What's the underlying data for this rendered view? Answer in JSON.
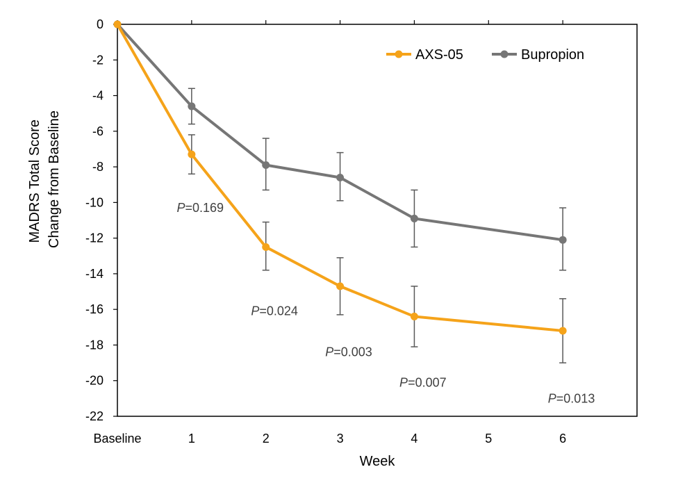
{
  "chart_data": {
    "type": "line",
    "xlabel": "Week",
    "ylabel_line1": "MADRS Total Score",
    "ylabel_line2": "Change from Baseline",
    "ylim": [
      -22,
      0
    ],
    "yticks": [
      0,
      -2,
      -4,
      -6,
      -8,
      -10,
      -12,
      -14,
      -16,
      -18,
      -20,
      -22
    ],
    "ytick_labels": [
      "0",
      "-2",
      "-4",
      "-6",
      "-8",
      "-10",
      "-12",
      "-14",
      "-16",
      "-18",
      "-20",
      "-22"
    ],
    "xlim": [
      0,
      7
    ],
    "xticks": [
      0,
      1,
      2,
      3,
      4,
      5,
      6
    ],
    "xtick_labels": [
      "Baseline",
      "1",
      "2",
      "3",
      "4",
      "5",
      "6"
    ],
    "series": [
      {
        "name": "AXS-05",
        "color": "#f5a31a",
        "x": [
          0,
          1,
          2,
          3,
          4,
          6
        ],
        "values": [
          0,
          -7.3,
          -12.5,
          -14.7,
          -16.4,
          -17.2
        ],
        "err_upper": [
          0,
          -6.2,
          -11.1,
          -13.1,
          -14.7,
          -15.4
        ],
        "err_lower": [
          0,
          -8.4,
          -13.8,
          -16.3,
          -18.1,
          -19.0
        ]
      },
      {
        "name": "Bupropion",
        "color": "#767676",
        "x": [
          0,
          1,
          2,
          3,
          4,
          6
        ],
        "values": [
          0,
          -4.6,
          -7.9,
          -8.6,
          -10.9,
          -12.1
        ],
        "err_upper": [
          0,
          -3.6,
          -6.4,
          -7.2,
          -9.3,
          -10.3
        ],
        "err_lower": [
          0,
          -5.6,
          -9.3,
          -9.9,
          -12.5,
          -13.8
        ]
      }
    ],
    "annotations": [
      {
        "p": "P",
        "text": "=0.169",
        "x": 0.8,
        "y": -10.3
      },
      {
        "p": "P",
        "text": "=0.024",
        "x": 1.8,
        "y": -16.1
      },
      {
        "p": "P",
        "text": "=0.003",
        "x": 2.8,
        "y": -18.4
      },
      {
        "p": "P",
        "text": "=0.007",
        "x": 3.8,
        "y": -20.1
      },
      {
        "p": "P",
        "text": "=0.013",
        "x": 5.8,
        "y": -21.0
      }
    ],
    "legend_position": "top-right"
  }
}
